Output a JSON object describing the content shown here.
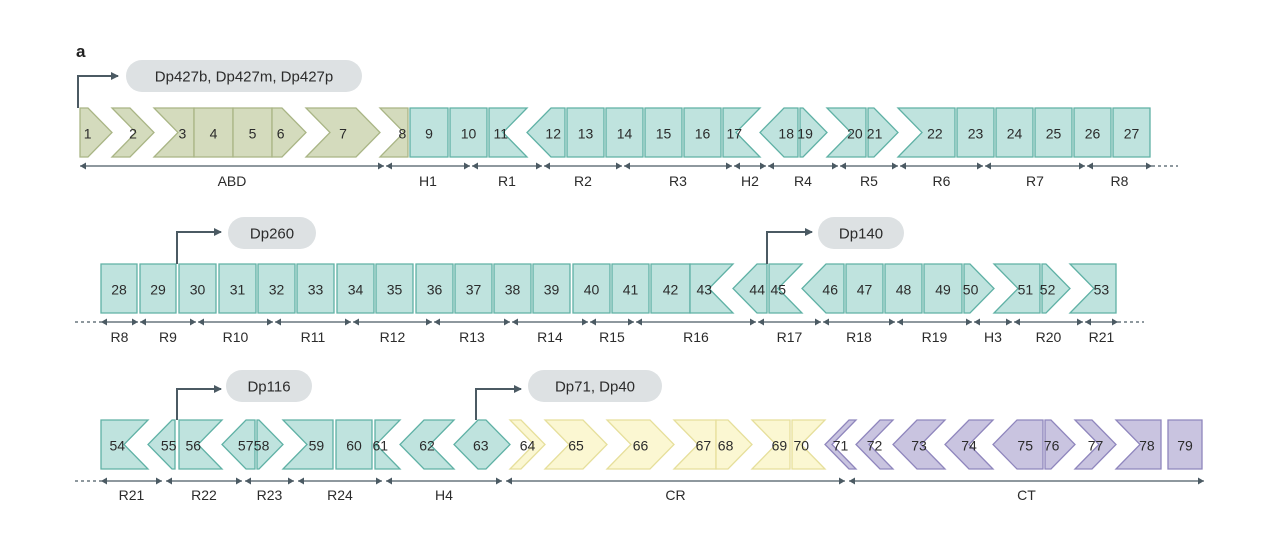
{
  "panel_label": "a",
  "colors": {
    "abd": "#d4dbbd",
    "abd_stroke": "#a9b585",
    "rod": "#bfe3de",
    "rod_stroke": "#5fb1a5",
    "cr": "#fbf7d2",
    "cr_stroke": "#e6df9b",
    "ct": "#c9c4e0",
    "ct_stroke": "#8f86bd",
    "promoter_bubble": "#dde1e3",
    "line": "#4b5a63"
  },
  "rows": [
    {
      "exons": [
        {
          "n": "1",
          "c": "abd"
        },
        {
          "n": "2",
          "c": "abd"
        },
        {
          "n": "3",
          "c": "abd"
        },
        {
          "n": "4",
          "c": "abd"
        },
        {
          "n": "5",
          "c": "abd"
        },
        {
          "n": "6",
          "c": "abd"
        },
        {
          "n": "7",
          "c": "abd"
        },
        {
          "n": "8",
          "c": "abd"
        },
        {
          "n": "9",
          "c": "rod"
        },
        {
          "n": "10",
          "c": "rod"
        },
        {
          "n": "11",
          "c": "rod"
        },
        {
          "n": "12",
          "c": "rod"
        },
        {
          "n": "13",
          "c": "rod"
        },
        {
          "n": "14",
          "c": "rod"
        },
        {
          "n": "15",
          "c": "rod"
        },
        {
          "n": "16",
          "c": "rod"
        },
        {
          "n": "17",
          "c": "rod"
        },
        {
          "n": "18",
          "c": "rod"
        },
        {
          "n": "19",
          "c": "rod"
        },
        {
          "n": "20",
          "c": "rod"
        },
        {
          "n": "21",
          "c": "rod"
        },
        {
          "n": "22",
          "c": "rod"
        },
        {
          "n": "23",
          "c": "rod"
        },
        {
          "n": "24",
          "c": "rod"
        },
        {
          "n": "25",
          "c": "rod"
        },
        {
          "n": "26",
          "c": "rod"
        },
        {
          "n": "27",
          "c": "rod"
        }
      ],
      "domains": [
        "ABD",
        "H1",
        "R1",
        "R2",
        "R3",
        "H2",
        "R4",
        "R5",
        "R6",
        "R7",
        "R8"
      ],
      "promoters": [
        {
          "label": "Dp427b, Dp427m, Dp427p"
        }
      ]
    },
    {
      "exons": [
        {
          "n": "28",
          "c": "rod"
        },
        {
          "n": "29",
          "c": "rod"
        },
        {
          "n": "30",
          "c": "rod"
        },
        {
          "n": "31",
          "c": "rod"
        },
        {
          "n": "32",
          "c": "rod"
        },
        {
          "n": "33",
          "c": "rod"
        },
        {
          "n": "34",
          "c": "rod"
        },
        {
          "n": "35",
          "c": "rod"
        },
        {
          "n": "36",
          "c": "rod"
        },
        {
          "n": "37",
          "c": "rod"
        },
        {
          "n": "38",
          "c": "rod"
        },
        {
          "n": "39",
          "c": "rod"
        },
        {
          "n": "40",
          "c": "rod"
        },
        {
          "n": "41",
          "c": "rod"
        },
        {
          "n": "42",
          "c": "rod"
        },
        {
          "n": "43",
          "c": "rod"
        },
        {
          "n": "44",
          "c": "rod"
        },
        {
          "n": "45",
          "c": "rod"
        },
        {
          "n": "46",
          "c": "rod"
        },
        {
          "n": "47",
          "c": "rod"
        },
        {
          "n": "48",
          "c": "rod"
        },
        {
          "n": "49",
          "c": "rod"
        },
        {
          "n": "50",
          "c": "rod"
        },
        {
          "n": "51",
          "c": "rod"
        },
        {
          "n": "52",
          "c": "rod"
        },
        {
          "n": "53",
          "c": "rod"
        }
      ],
      "domains": [
        "R8",
        "R9",
        "R10",
        "R11",
        "R12",
        "R13",
        "R14",
        "R15",
        "R16",
        "R17",
        "R18",
        "R19",
        "H3",
        "R20",
        "R21"
      ],
      "promoters": [
        {
          "label": "Dp260"
        },
        {
          "label": "Dp140"
        }
      ]
    },
    {
      "exons": [
        {
          "n": "54",
          "c": "rod"
        },
        {
          "n": "55",
          "c": "rod"
        },
        {
          "n": "56",
          "c": "rod"
        },
        {
          "n": "57",
          "c": "rod"
        },
        {
          "n": "58",
          "c": "rod"
        },
        {
          "n": "59",
          "c": "rod"
        },
        {
          "n": "60",
          "c": "rod"
        },
        {
          "n": "61",
          "c": "rod"
        },
        {
          "n": "62",
          "c": "rod"
        },
        {
          "n": "63",
          "c": "rod"
        },
        {
          "n": "64",
          "c": "cr"
        },
        {
          "n": "65",
          "c": "cr"
        },
        {
          "n": "66",
          "c": "cr"
        },
        {
          "n": "67",
          "c": "cr"
        },
        {
          "n": "68",
          "c": "cr"
        },
        {
          "n": "69",
          "c": "cr"
        },
        {
          "n": "70",
          "c": "cr"
        },
        {
          "n": "71",
          "c": "ct"
        },
        {
          "n": "72",
          "c": "ct"
        },
        {
          "n": "73",
          "c": "ct"
        },
        {
          "n": "74",
          "c": "ct"
        },
        {
          "n": "75",
          "c": "ct"
        },
        {
          "n": "76",
          "c": "ct"
        },
        {
          "n": "77",
          "c": "ct"
        },
        {
          "n": "78",
          "c": "ct"
        },
        {
          "n": "79",
          "c": "ct"
        }
      ],
      "domains": [
        "R21",
        "R22",
        "R23",
        "R24",
        "H4",
        "CR",
        "CT"
      ],
      "promoters": [
        {
          "label": "Dp116"
        },
        {
          "label": "Dp71, Dp40"
        }
      ]
    }
  ]
}
